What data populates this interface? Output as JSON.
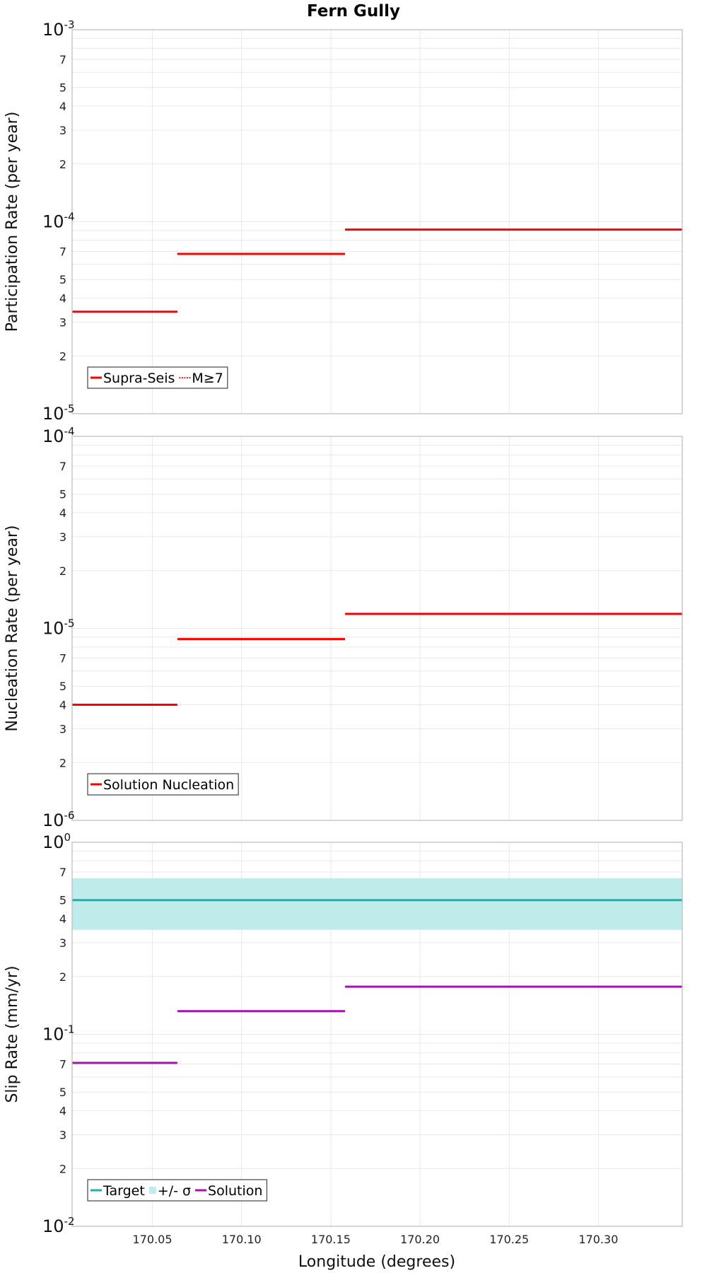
{
  "title": "Fern Gully",
  "colors": {
    "red": "#ff0000",
    "teal": "#18b3b0",
    "band": "#bfeceb",
    "purple": "#a612b4",
    "grid": "#e8e8e8",
    "frame": "#bbbbbb"
  },
  "chart_data": [
    {
      "type": "line",
      "panel": "participation",
      "title": "Fern Gully",
      "ylabel": "Participation Rate (per year)",
      "xlabel": "",
      "yscale": "log",
      "ylim": [
        1e-05,
        0.001
      ],
      "xlim": [
        170.005,
        170.347
      ],
      "major_tick_labels": [
        {
          "base": "10",
          "exp": "-5",
          "value": 1e-05
        },
        {
          "base": "10",
          "exp": "-4",
          "value": 0.0001
        },
        {
          "base": "10",
          "exp": "-3",
          "value": 0.001
        }
      ],
      "minor_tick_labels": [
        "2",
        "3",
        "4",
        "5",
        "7"
      ],
      "legend": [
        "Supra-Seis",
        "M≥7"
      ],
      "series": [
        {
          "name": "Supra-Seis",
          "style": "solid",
          "color": "#ff0000",
          "segments": [
            {
              "x": [
                170.005,
                170.064
              ],
              "y": 3.4e-05
            },
            {
              "x": [
                170.064,
                170.158
              ],
              "y": 6.8e-05
            },
            {
              "x": [
                170.158,
                170.347
              ],
              "y": 9.1e-05
            }
          ]
        },
        {
          "name": "M≥7",
          "style": "dotted",
          "color": "#ff0000",
          "segments": [
            {
              "x": [
                170.005,
                170.064
              ],
              "y": 3.4e-05
            },
            {
              "x": [
                170.064,
                170.158
              ],
              "y": 6.8e-05
            },
            {
              "x": [
                170.158,
                170.347
              ],
              "y": 9.1e-05
            }
          ]
        }
      ]
    },
    {
      "type": "line",
      "panel": "nucleation",
      "ylabel": "Nucleation Rate (per year)",
      "xlabel": "",
      "yscale": "log",
      "ylim": [
        1e-06,
        0.0001
      ],
      "xlim": [
        170.005,
        170.347
      ],
      "major_tick_labels": [
        {
          "base": "10",
          "exp": "-6",
          "value": 1e-06
        },
        {
          "base": "10",
          "exp": "-5",
          "value": 1e-05
        },
        {
          "base": "10",
          "exp": "-4",
          "value": 0.0001
        }
      ],
      "minor_tick_labels": [
        "2",
        "3",
        "4",
        "5",
        "7"
      ],
      "legend": [
        "Solution Nucleation"
      ],
      "series": [
        {
          "name": "Solution Nucleation",
          "style": "solid",
          "color": "#ff0000",
          "segments": [
            {
              "x": [
                170.005,
                170.064
              ],
              "y": 4e-06
            },
            {
              "x": [
                170.064,
                170.158
              ],
              "y": 8.8e-06
            },
            {
              "x": [
                170.158,
                170.347
              ],
              "y": 1.19e-05
            }
          ]
        }
      ]
    },
    {
      "type": "line",
      "panel": "slip",
      "ylabel": "Slip Rate (mm/yr)",
      "xlabel": "Longitude (degrees)",
      "yscale": "log",
      "ylim": [
        0.01,
        1
      ],
      "xlim": [
        170.005,
        170.347
      ],
      "major_tick_labels": [
        {
          "base": "10",
          "exp": "-2",
          "value": 0.01
        },
        {
          "base": "10",
          "exp": "-1",
          "value": 0.1
        },
        {
          "base": "10",
          "exp": "0",
          "value": 1
        }
      ],
      "minor_tick_labels": [
        "2",
        "3",
        "4",
        "5",
        "7"
      ],
      "x_tick_labels": [
        "170.05",
        "170.10",
        "170.15",
        "170.20",
        "170.25",
        "170.30"
      ],
      "legend": [
        "Target",
        "+/- σ",
        "Solution"
      ],
      "band": {
        "name": "+/- σ",
        "y_low": 0.35,
        "y_high": 0.65,
        "x": [
          170.005,
          170.347
        ]
      },
      "series": [
        {
          "name": "Target",
          "style": "solid",
          "color": "#18b3b0",
          "segments": [
            {
              "x": [
                170.005,
                170.347
              ],
              "y": 0.5
            }
          ]
        },
        {
          "name": "Solution",
          "style": "solid",
          "color": "#a612b4",
          "segments": [
            {
              "x": [
                170.005,
                170.064
              ],
              "y": 0.071
            },
            {
              "x": [
                170.064,
                170.158
              ],
              "y": 0.132
            },
            {
              "x": [
                170.158,
                170.347
              ],
              "y": 0.177
            }
          ]
        }
      ]
    }
  ]
}
